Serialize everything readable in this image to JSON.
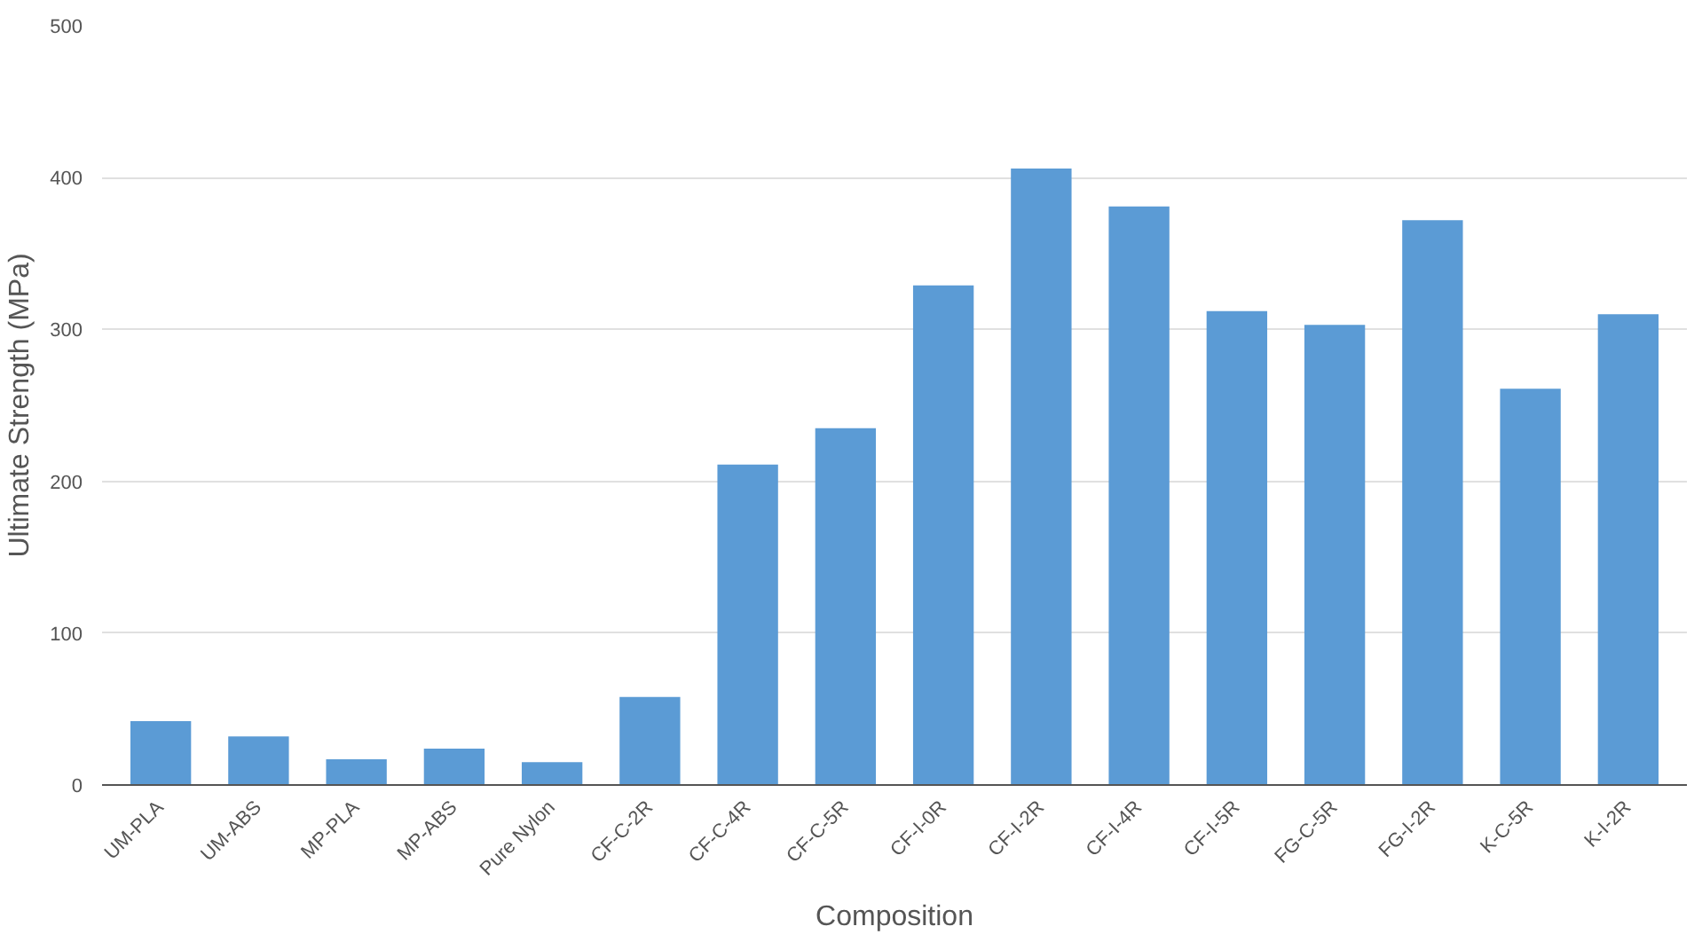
{
  "chart_data": {
    "type": "bar",
    "xlabel": "Composition",
    "ylabel": "Ultimate Strength (MPa)",
    "categories": [
      "UM-PLA",
      "UM-ABS",
      "MP-PLA",
      "MP-ABS",
      "Pure Nylon",
      "CF-C-2R",
      "CF-C-4R",
      "CF-C-5R",
      "CF-I-0R",
      "CF-I-2R",
      "CF-I-4R",
      "CF-I-5R",
      "FG-C-5R",
      "FG-I-2R",
      "K-C-5R",
      "K-I-2R"
    ],
    "values": [
      42,
      32,
      17,
      24,
      15,
      58,
      211,
      235,
      329,
      406,
      381,
      312,
      303,
      372,
      261,
      310
    ],
    "color": "#5b9bd5",
    "ylim": [
      0,
      500
    ],
    "yticks": [
      0,
      100,
      200,
      300,
      400,
      500
    ],
    "grid": "y"
  }
}
